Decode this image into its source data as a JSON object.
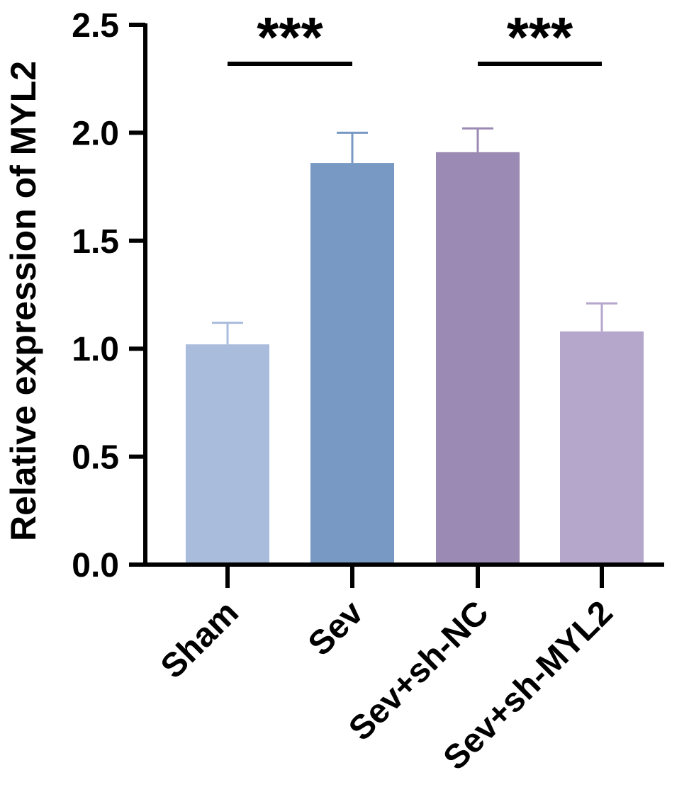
{
  "chart_data": {
    "type": "bar",
    "title": "",
    "xlabel": "",
    "ylabel": "Relative expression of MYL2",
    "ylim": [
      0,
      2.5
    ],
    "yticks": [
      "0.0",
      "0.5",
      "1.0",
      "1.5",
      "2.0",
      "2.5"
    ],
    "grid": false,
    "categories": [
      "Sham",
      "Sev",
      "Sev+sh-NC",
      "Sev+sh-MYL2"
    ],
    "values": [
      1.02,
      1.86,
      1.91,
      1.08
    ],
    "error_upper": [
      1.12,
      2.0,
      2.02,
      1.21
    ],
    "colors": [
      "#a9bcdc",
      "#7799c4",
      "#9b8ab3",
      "#b5a6cb"
    ],
    "significance": [
      {
        "from": "Sham",
        "to": "Sev",
        "label": "***"
      },
      {
        "from": "Sev+sh-NC",
        "to": "Sev+sh-MYL2",
        "label": "***"
      }
    ]
  }
}
